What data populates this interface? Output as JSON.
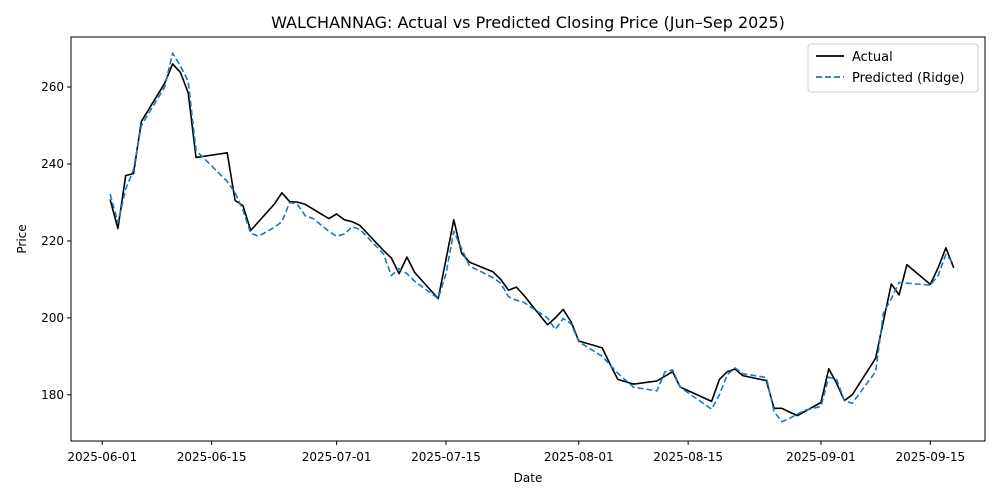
{
  "chart_data": {
    "type": "line",
    "title": "WALCHANNAG: Actual vs Predicted Closing Price (Jun–Sep 2025)",
    "xlabel": "Date",
    "ylabel": "Price",
    "xlim": [
      "2025-05-28",
      "2025-09-22"
    ],
    "ylim": [
      168,
      273
    ],
    "x_ticks": [
      "2025-06-01",
      "2025-06-15",
      "2025-07-01",
      "2025-07-15",
      "2025-08-01",
      "2025-08-15",
      "2025-09-01",
      "2025-09-15"
    ],
    "y_ticks": [
      180,
      200,
      220,
      240,
      260
    ],
    "legend_position": "top-right",
    "grid": false,
    "series": [
      {
        "name": "Actual",
        "color": "#000000",
        "style": "solid",
        "points": [
          [
            "2025-06-02",
            230.8
          ],
          [
            "2025-06-03",
            223.2
          ],
          [
            "2025-06-04",
            237.0
          ],
          [
            "2025-06-05",
            237.5
          ],
          [
            "2025-06-06",
            251.0
          ],
          [
            "2025-06-09",
            261.0
          ],
          [
            "2025-06-10",
            266.0
          ],
          [
            "2025-06-11",
            263.8
          ],
          [
            "2025-06-12",
            258.5
          ],
          [
            "2025-06-13",
            241.7
          ],
          [
            "2025-06-16",
            242.6
          ],
          [
            "2025-06-17",
            242.9
          ],
          [
            "2025-06-18",
            230.5
          ],
          [
            "2025-06-19",
            229.2
          ],
          [
            "2025-06-20",
            222.7
          ],
          [
            "2025-06-23",
            229.5
          ],
          [
            "2025-06-24",
            232.5
          ],
          [
            "2025-06-25",
            230.2
          ],
          [
            "2025-06-26",
            230.1
          ],
          [
            "2025-06-27",
            229.5
          ],
          [
            "2025-06-30",
            225.8
          ],
          [
            "2025-07-01",
            227.0
          ],
          [
            "2025-07-02",
            225.5
          ],
          [
            "2025-07-03",
            225.0
          ],
          [
            "2025-07-04",
            224.0
          ],
          [
            "2025-07-07",
            217.5
          ],
          [
            "2025-07-08",
            215.6
          ],
          [
            "2025-07-09",
            211.5
          ],
          [
            "2025-07-10",
            215.8
          ],
          [
            "2025-07-11",
            211.8
          ],
          [
            "2025-07-14",
            205.0
          ],
          [
            "2025-07-15",
            215.2
          ],
          [
            "2025-07-16",
            225.5
          ],
          [
            "2025-07-17",
            216.8
          ],
          [
            "2025-07-18",
            214.5
          ],
          [
            "2025-07-21",
            212.0
          ],
          [
            "2025-07-22",
            210.0
          ],
          [
            "2025-07-23",
            207.2
          ],
          [
            "2025-07-24",
            208.0
          ],
          [
            "2025-07-25",
            205.8
          ],
          [
            "2025-07-28",
            198.2
          ],
          [
            "2025-07-29",
            200.0
          ],
          [
            "2025-07-30",
            202.2
          ],
          [
            "2025-07-31",
            199.0
          ],
          [
            "2025-08-01",
            194.0
          ],
          [
            "2025-08-04",
            192.2
          ],
          [
            "2025-08-05",
            188.0
          ],
          [
            "2025-08-06",
            184.0
          ],
          [
            "2025-08-08",
            182.8
          ],
          [
            "2025-08-11",
            183.6
          ],
          [
            "2025-08-13",
            186.0
          ],
          [
            "2025-08-14",
            182.0
          ],
          [
            "2025-08-18",
            178.3
          ],
          [
            "2025-08-19",
            184.0
          ],
          [
            "2025-08-20",
            186.0
          ],
          [
            "2025-08-21",
            186.7
          ],
          [
            "2025-08-22",
            185.0
          ],
          [
            "2025-08-25",
            183.7
          ],
          [
            "2025-08-26",
            176.5
          ],
          [
            "2025-08-27",
            176.5
          ],
          [
            "2025-08-28",
            175.5
          ],
          [
            "2025-08-29",
            174.6
          ],
          [
            "2025-09-01",
            178.0
          ],
          [
            "2025-09-02",
            186.8
          ],
          [
            "2025-09-03",
            183.0
          ],
          [
            "2025-09-04",
            178.5
          ],
          [
            "2025-09-05",
            180.0
          ],
          [
            "2025-09-08",
            189.5
          ],
          [
            "2025-09-10",
            208.8
          ],
          [
            "2025-09-11",
            206.0
          ],
          [
            "2025-09-12",
            213.8
          ],
          [
            "2025-09-15",
            208.7
          ],
          [
            "2025-09-16",
            213.0
          ],
          [
            "2025-09-17",
            218.2
          ],
          [
            "2025-09-18",
            213.0
          ]
        ]
      },
      {
        "name": "Predicted (Ridge)",
        "color": "#1f77b4",
        "style": "dashed",
        "points": [
          [
            "2025-06-02",
            232.2
          ],
          [
            "2025-06-03",
            224.8
          ],
          [
            "2025-06-04",
            233.5
          ],
          [
            "2025-06-05",
            238.5
          ],
          [
            "2025-06-06",
            250.0
          ],
          [
            "2025-06-09",
            260.0
          ],
          [
            "2025-06-10",
            268.8
          ],
          [
            "2025-06-11",
            265.5
          ],
          [
            "2025-06-12",
            261.5
          ],
          [
            "2025-06-13",
            243.5
          ],
          [
            "2025-06-16",
            237.5
          ],
          [
            "2025-06-17",
            235.5
          ],
          [
            "2025-06-18",
            232.5
          ],
          [
            "2025-06-19",
            228.0
          ],
          [
            "2025-06-20",
            222.0
          ],
          [
            "2025-06-21",
            221.2
          ],
          [
            "2025-06-23",
            223.5
          ],
          [
            "2025-06-24",
            225.0
          ],
          [
            "2025-06-25",
            230.0
          ],
          [
            "2025-06-26",
            229.5
          ],
          [
            "2025-06-27",
            226.5
          ],
          [
            "2025-06-28",
            225.8
          ],
          [
            "2025-06-30",
            222.5
          ],
          [
            "2025-07-01",
            221.2
          ],
          [
            "2025-07-02",
            221.8
          ],
          [
            "2025-07-03",
            223.7
          ],
          [
            "2025-07-04",
            223.0
          ],
          [
            "2025-07-07",
            216.6
          ],
          [
            "2025-07-08",
            211.0
          ],
          [
            "2025-07-09",
            212.8
          ],
          [
            "2025-07-10",
            211.5
          ],
          [
            "2025-07-11",
            209.5
          ],
          [
            "2025-07-14",
            205.0
          ],
          [
            "2025-07-15",
            211.5
          ],
          [
            "2025-07-16",
            222.5
          ],
          [
            "2025-07-17",
            218.0
          ],
          [
            "2025-07-18",
            213.5
          ],
          [
            "2025-07-21",
            210.5
          ],
          [
            "2025-07-22",
            209.0
          ],
          [
            "2025-07-23",
            205.5
          ],
          [
            "2025-07-24",
            204.6
          ],
          [
            "2025-07-25",
            204.0
          ],
          [
            "2025-07-28",
            200.0
          ],
          [
            "2025-07-29",
            197.0
          ],
          [
            "2025-07-30",
            199.8
          ],
          [
            "2025-07-31",
            198.5
          ],
          [
            "2025-08-01",
            193.8
          ],
          [
            "2025-08-04",
            190.0
          ],
          [
            "2025-08-05",
            187.8
          ],
          [
            "2025-08-06",
            185.6
          ],
          [
            "2025-08-08",
            182.0
          ],
          [
            "2025-08-11",
            181.0
          ],
          [
            "2025-08-12",
            185.9
          ],
          [
            "2025-08-13",
            186.5
          ],
          [
            "2025-08-14",
            182.0
          ],
          [
            "2025-08-15",
            180.5
          ],
          [
            "2025-08-18",
            176.3
          ],
          [
            "2025-08-19",
            180.0
          ],
          [
            "2025-08-20",
            185.2
          ],
          [
            "2025-08-21",
            187.0
          ],
          [
            "2025-08-22",
            185.5
          ],
          [
            "2025-08-25",
            184.5
          ],
          [
            "2025-08-26",
            175.6
          ],
          [
            "2025-08-27",
            173.0
          ],
          [
            "2025-08-28",
            173.9
          ],
          [
            "2025-08-29",
            175.0
          ],
          [
            "2025-08-30",
            176.0
          ],
          [
            "2025-09-01",
            177.0
          ],
          [
            "2025-09-02",
            184.6
          ],
          [
            "2025-09-03",
            184.0
          ],
          [
            "2025-09-04",
            178.5
          ],
          [
            "2025-09-05",
            177.8
          ],
          [
            "2025-09-08",
            186.0
          ],
          [
            "2025-09-09",
            201.2
          ],
          [
            "2025-09-10",
            205.0
          ],
          [
            "2025-09-11",
            209.2
          ],
          [
            "2025-09-12",
            209.0
          ],
          [
            "2025-09-15",
            208.5
          ],
          [
            "2025-09-16",
            211.0
          ],
          [
            "2025-09-17",
            216.5
          ],
          [
            "2025-09-18",
            214.0
          ]
        ]
      }
    ]
  }
}
